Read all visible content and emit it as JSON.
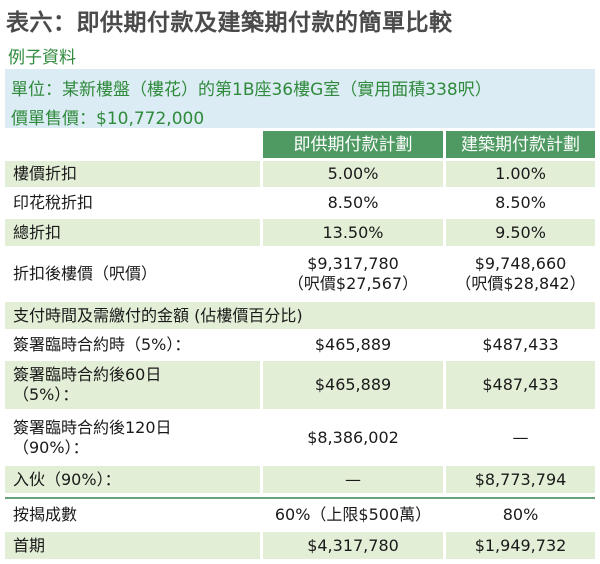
{
  "title": "表六：即供期付款及建築期付款的簡單比較",
  "subtitle": "例子資料",
  "info": {
    "unit_line": "單位：某新樓盤（樓花）的第1B座36樓G室（實用面積338呎）",
    "price_line": "價單售價：$10,772,000"
  },
  "table": {
    "headers": [
      "",
      "即供期付款計劃",
      "建築期付款計劃"
    ],
    "rows": [
      {
        "label": [
          "樓價折扣"
        ],
        "immediate": [
          "5.00%"
        ],
        "construction": [
          "1.00%"
        ]
      },
      {
        "label": [
          "印花稅折扣"
        ],
        "immediate": [
          "8.50%"
        ],
        "construction": [
          "8.50%"
        ]
      },
      {
        "label": [
          "總折扣"
        ],
        "immediate": [
          "13.50%"
        ],
        "construction": [
          "9.50%"
        ]
      },
      {
        "label": [
          "折扣後樓價（呎價）"
        ],
        "immediate": [
          "$9,317,780",
          "（呎價$27,567）"
        ],
        "construction": [
          "$9,748,660",
          "（呎價$28,842）"
        ]
      },
      {
        "label": [
          "支付時間及需繳付的金額 (佔樓價百分比)"
        ],
        "immediate": [],
        "construction": []
      },
      {
        "label": [
          "簽署臨時合約時（5%）："
        ],
        "immediate": [
          "$465,889"
        ],
        "construction": [
          "$487,433"
        ]
      },
      {
        "label": [
          "簽署臨時合約後60日",
          "（5%）："
        ],
        "immediate": [
          "$465,889"
        ],
        "construction": [
          "$487,433"
        ]
      },
      {
        "label": [
          "簽署臨時合約後120日",
          "（90%）："
        ],
        "immediate": [
          "$8,386,002"
        ],
        "construction": [
          "—"
        ]
      },
      {
        "label": [
          "入伙（90%）："
        ],
        "immediate": [
          "—"
        ],
        "construction": [
          "$8,773,794"
        ]
      },
      {
        "label": [
          "按揭成數"
        ],
        "immediate": [
          "60%（上限$500萬）"
        ],
        "construction": [
          "80%"
        ]
      },
      {
        "label": [
          "首期"
        ],
        "immediate": [
          "$4,317,780"
        ],
        "construction": [
          "$1,949,732"
        ]
      }
    ]
  }
}
